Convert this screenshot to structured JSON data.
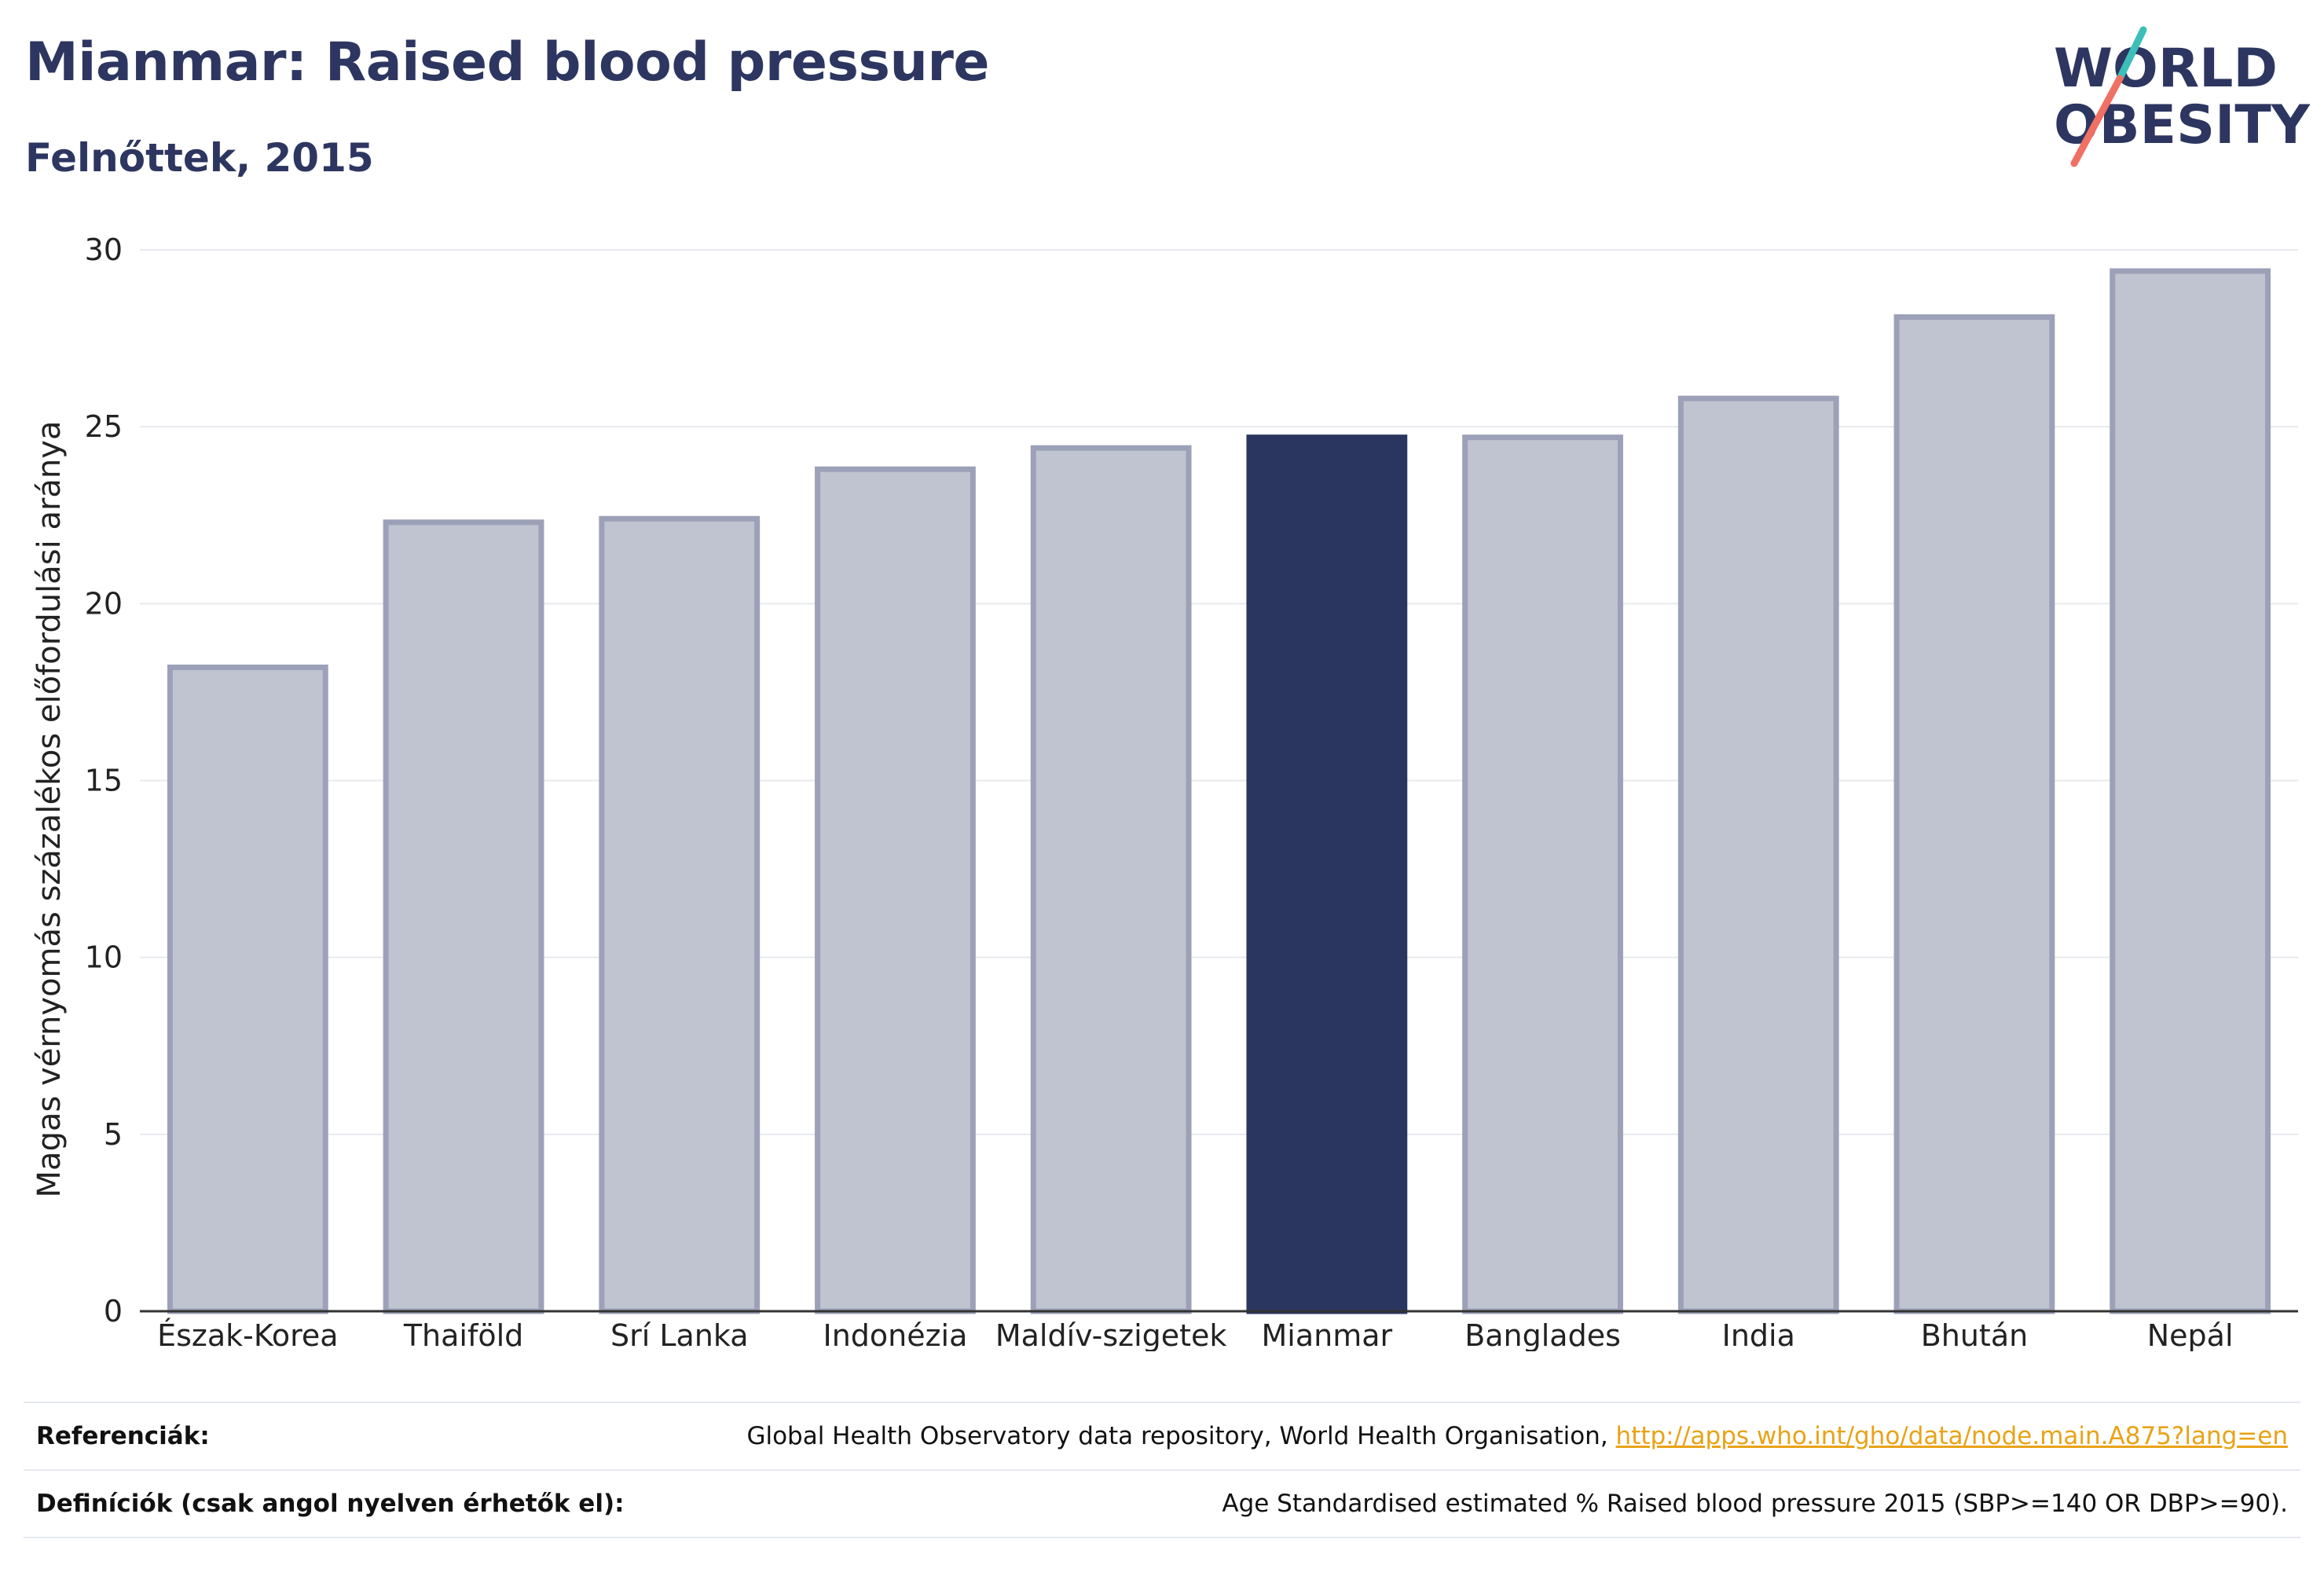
{
  "header": {
    "title": "Mianmar: Raised blood pressure",
    "subtitle": "Felnőttek, 2015"
  },
  "logo": {
    "line1": "WORLD",
    "line2": "OBESITY",
    "text_color": "#2d3660",
    "accent_teal": "#3bbfb8",
    "accent_coral": "#f07063"
  },
  "colors": {
    "bar_default_fill": "#c0c3d0",
    "bar_default_stroke": "#9ca1b8",
    "bar_highlight": "#2b3660",
    "gridline": "#e8e9ee",
    "axis": "#333333"
  },
  "chart_data": {
    "type": "bar",
    "title": "Mianmar: Raised blood pressure",
    "subtitle": "Felnőttek, 2015",
    "xlabel": "",
    "ylabel": "Magas vérnyomás százalékos előfordulási aránya",
    "ylim": [
      0,
      30
    ],
    "yticks": [
      0,
      5,
      10,
      15,
      20,
      25,
      30
    ],
    "grid": true,
    "highlight": "Mianmar",
    "categories": [
      "Észak-Korea",
      "Thaiföld",
      "Srí Lanka",
      "Indonézia",
      "Maldív-szigetek",
      "Mianmar",
      "Banglades",
      "India",
      "Bhután",
      "Nepál"
    ],
    "values": [
      18.2,
      22.3,
      22.4,
      23.8,
      24.4,
      24.7,
      24.7,
      25.8,
      28.1,
      29.4
    ]
  },
  "footer": {
    "references_label": "Referenciák:",
    "references_text": "Global Health Observatory data repository, World Health Organisation, ",
    "references_link": "http://apps.who.int/gho/data/node.main.A875?lang=en",
    "definitions_label": "Definíciók (csak angol nyelven érhetők el):",
    "definitions_text": "Age Standardised estimated % Raised blood pressure 2015 (SBP>=140 OR DBP>=90)."
  }
}
